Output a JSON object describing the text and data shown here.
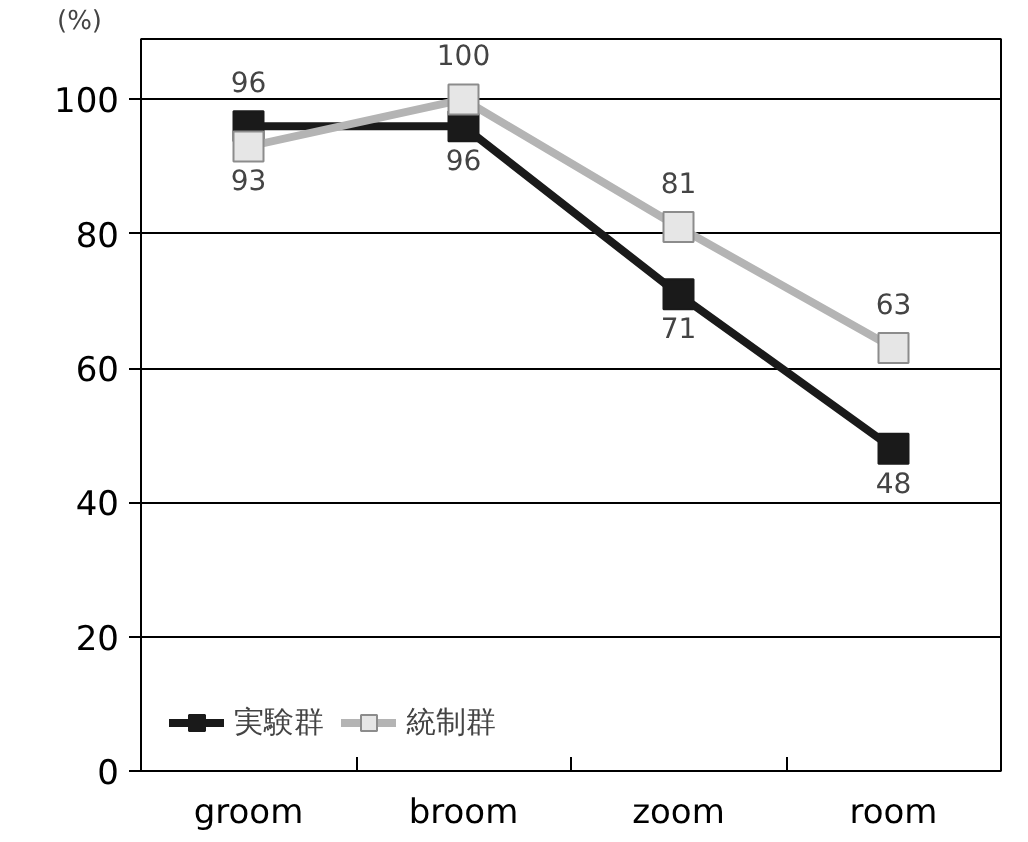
{
  "chart_data": {
    "type": "line",
    "ylabel": "(%)",
    "categories": [
      "groom",
      "broom",
      "zoom",
      "room"
    ],
    "series": [
      {
        "name": "実験群",
        "color": "#1a1a1a",
        "values": [
          96,
          96,
          71,
          48
        ]
      },
      {
        "name": "統制群",
        "color": "#b4b4b4",
        "values": [
          93,
          100,
          81,
          63
        ]
      }
    ],
    "ylim": [
      0,
      109
    ],
    "yticks": [
      0,
      20,
      40,
      60,
      80,
      100
    ],
    "grid": "y",
    "legend": "bottom left",
    "marker": "square",
    "line_style": "solid",
    "data_labels": true
  }
}
